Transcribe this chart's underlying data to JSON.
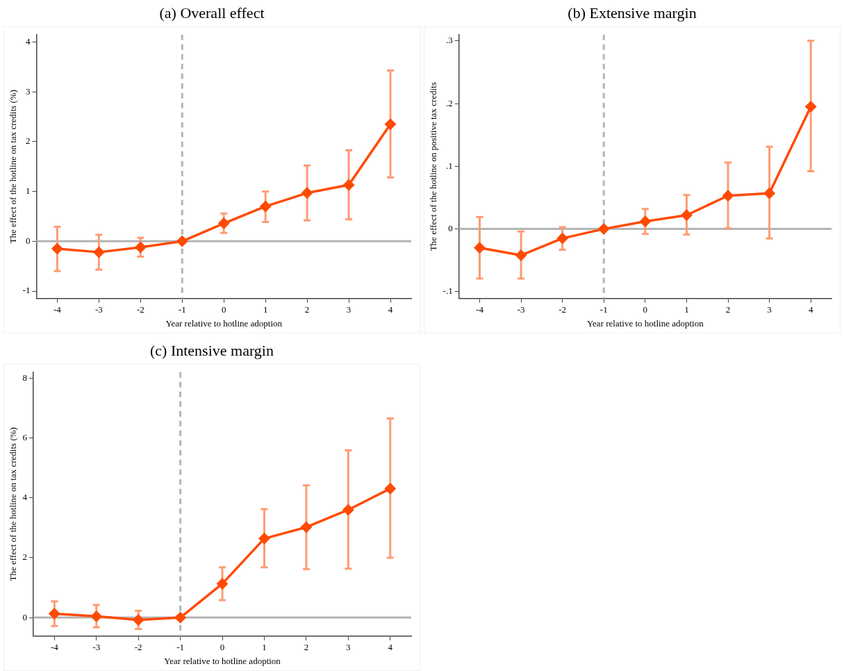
{
  "chart_data": [
    {
      "type": "line",
      "title": "(a) Overall effect",
      "xlabel": "Year relative to hotline adoption",
      "ylabel": "The effect of the hotline on tax credits (%)",
      "x": [
        -4,
        -3,
        -2,
        -1,
        0,
        1,
        2,
        3,
        4
      ],
      "series": [
        {
          "color": "#ff4a00",
          "values": [
            -0.15,
            -0.22,
            -0.12,
            0,
            0.36,
            0.7,
            0.97,
            1.13,
            2.35
          ],
          "errors": [
            [
              -0.6,
              0.29
            ],
            [
              -0.57,
              0.13
            ],
            [
              -0.31,
              0.07
            ],
            null,
            [
              0.17,
              0.56
            ],
            [
              0.39,
              1.0
            ],
            [
              0.42,
              1.52
            ],
            [
              0.44,
              1.83
            ],
            [
              1.28,
              3.43
            ]
          ]
        }
      ],
      "xlim": [
        -4.5,
        4.5
      ],
      "xticks": [
        -4,
        -3,
        -2,
        -1,
        0,
        1,
        2,
        3,
        4
      ],
      "ylim": [
        -1.15,
        4.15
      ],
      "yticks": [
        -1,
        0,
        1,
        2,
        3,
        4
      ],
      "ref_lines": [
        {
          "axis": "x",
          "value": -1,
          "color": "#b4b4b4",
          "line_style": "dashed"
        },
        {
          "axis": "y",
          "value": 0,
          "color": "#b4b4b4",
          "line_style": "solid"
        }
      ],
      "marker": "diamond",
      "line_style": "solid",
      "grid": false,
      "legend": false
    },
    {
      "type": "line",
      "title": "(b) Extensive margin",
      "xlabel": "Year relative to hotline adoption",
      "ylabel": "The effect of the hotline on positive tax credits",
      "x": [
        -4,
        -3,
        -2,
        -1,
        0,
        1,
        2,
        3,
        4
      ],
      "series": [
        {
          "color": "#ff4a00",
          "values": [
            -0.03,
            -0.042,
            -0.015,
            0,
            0.012,
            0.022,
            0.053,
            0.057,
            0.195
          ],
          "errors": [
            [
              -0.079,
              0.019
            ],
            [
              -0.079,
              -0.004
            ],
            [
              -0.033,
              0.003
            ],
            null,
            [
              -0.008,
              0.032
            ],
            [
              -0.009,
              0.054
            ],
            [
              0.001,
              0.106
            ],
            [
              -0.015,
              0.131
            ],
            [
              0.092,
              0.3
            ]
          ]
        }
      ],
      "xlim": [
        -4.5,
        4.5
      ],
      "xticks": [
        -4,
        -3,
        -2,
        -1,
        0,
        1,
        2,
        3,
        4
      ],
      "ylim": [
        -0.111,
        0.31
      ],
      "yticks": [
        {
          "value": -0.1,
          "label": "-.1"
        },
        0,
        {
          "value": 0.1,
          "label": ".1"
        },
        {
          "value": 0.2,
          "label": ".2"
        },
        {
          "value": 0.3,
          "label": ".3"
        }
      ],
      "ref_lines": [
        {
          "axis": "x",
          "value": -1,
          "color": "#b4b4b4",
          "line_style": "dashed"
        },
        {
          "axis": "y",
          "value": 0,
          "color": "#b4b4b4",
          "line_style": "solid"
        }
      ],
      "marker": "diamond",
      "line_style": "solid",
      "grid": false,
      "legend": false
    },
    {
      "type": "line",
      "title": "(c) Intensive margin",
      "xlabel": "Year relative to hotline adoption",
      "ylabel": "The effect of the hotline on tax credits (%)",
      "x": [
        -4,
        -3,
        -2,
        -1,
        0,
        1,
        2,
        3,
        4
      ],
      "series": [
        {
          "color": "#ff4a00",
          "values": [
            0.13,
            0.04,
            -0.08,
            0,
            1.13,
            2.64,
            3.02,
            3.6,
            4.31
          ],
          "errors": [
            [
              -0.28,
              0.54
            ],
            [
              -0.32,
              0.42
            ],
            [
              -0.38,
              0.23
            ],
            null,
            [
              0.58,
              1.68
            ],
            [
              1.68,
              3.62
            ],
            [
              1.62,
              4.42
            ],
            [
              1.63,
              5.59
            ],
            [
              2.0,
              6.65
            ]
          ]
        }
      ],
      "xlim": [
        -4.5,
        4.5
      ],
      "xticks": [
        -4,
        -3,
        -2,
        -1,
        0,
        1,
        2,
        3,
        4
      ],
      "ylim": [
        -0.62,
        8.2
      ],
      "yticks": [
        0,
        2,
        4,
        6,
        8
      ],
      "ref_lines": [
        {
          "axis": "x",
          "value": -1,
          "color": "#b4b4b4",
          "line_style": "dashed"
        },
        {
          "axis": "y",
          "value": 0,
          "color": "#b4b4b4",
          "line_style": "solid"
        }
      ],
      "marker": "diamond",
      "line_style": "solid",
      "grid": false,
      "legend": false
    }
  ]
}
